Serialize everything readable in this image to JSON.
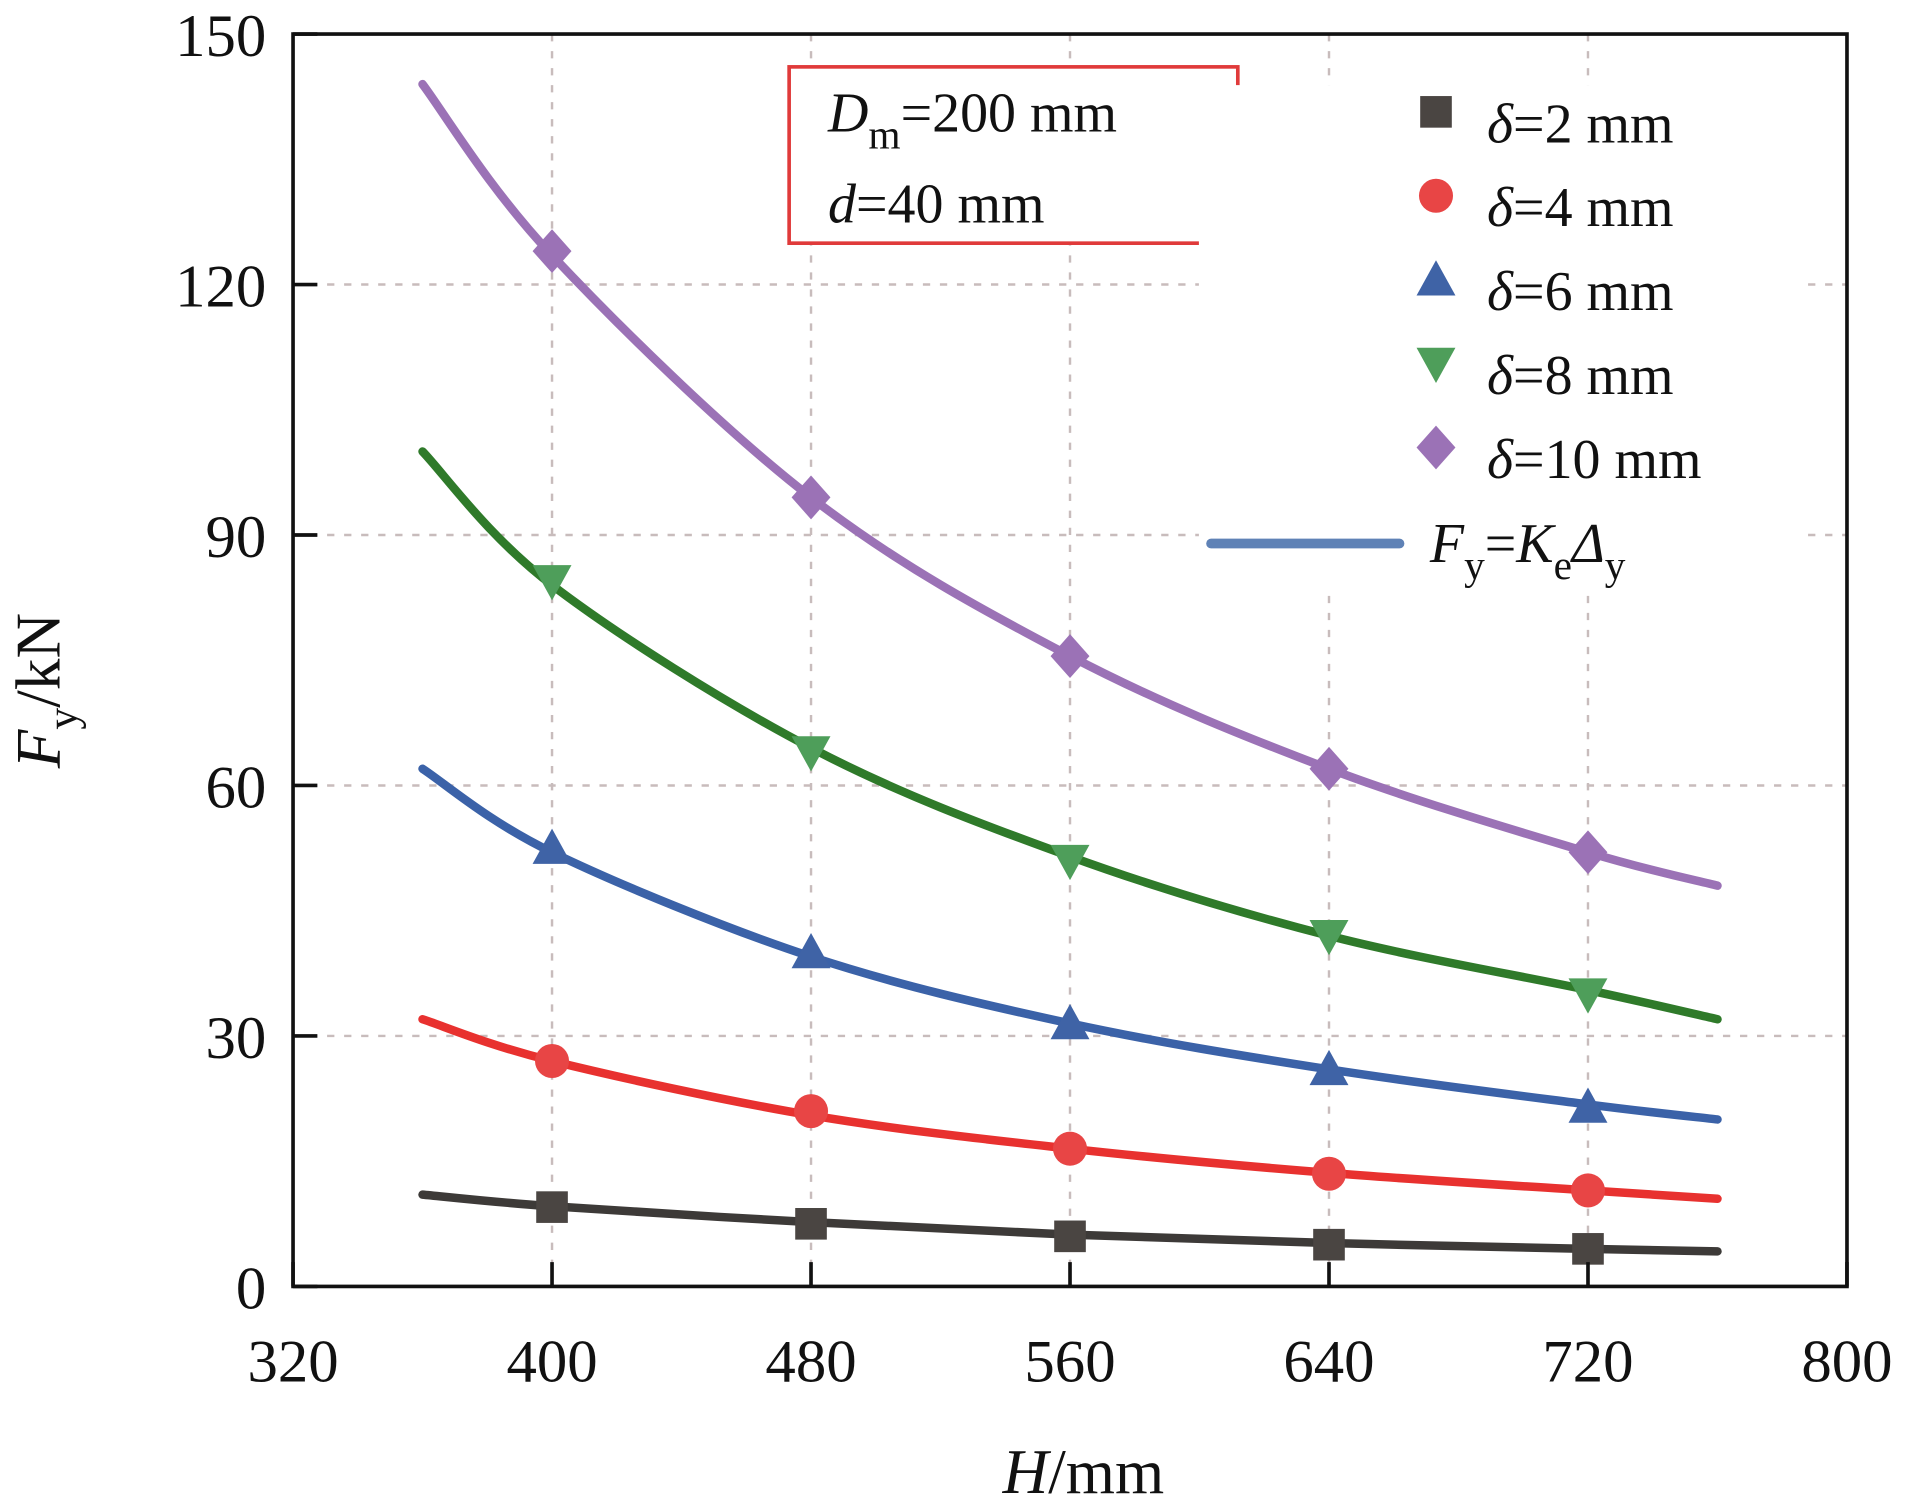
{
  "chart_data": {
    "type": "line",
    "title": "",
    "xlabel": {
      "var": "H",
      "unit": "/mm"
    },
    "ylabel": {
      "var": "F",
      "sub": "y",
      "unit": "/kN"
    },
    "xlim": [
      320,
      800
    ],
    "ylim": [
      0,
      150
    ],
    "xticks": [
      320,
      400,
      480,
      560,
      640,
      720,
      800
    ],
    "yticks": [
      0,
      30,
      60,
      90,
      120,
      150
    ],
    "grid": true,
    "legend_placement": "top-right",
    "annotation": {
      "line1": {
        "var": "D",
        "sub": "m",
        "rest": "=200 mm"
      },
      "line2": {
        "var": "d",
        "rest": "=40 mm"
      },
      "border_color": "#e03a3a"
    },
    "marker_x": [
      400,
      480,
      560,
      640,
      720
    ],
    "series": [
      {
        "name": "δ=2 mm",
        "delta": "δ",
        "rest": "=2 mm",
        "marker": "square",
        "color": "#3d3a38",
        "values": [
          9.5,
          7.5,
          6,
          5,
          4.5
        ],
        "fit_x": [
          360,
          400,
          480,
          560,
          640,
          720,
          760
        ],
        "fit_y": [
          11,
          9.6,
          7.7,
          6.2,
          5.2,
          4.5,
          4.2
        ]
      },
      {
        "name": "δ=4 mm",
        "delta": "δ",
        "rest": "=4 mm",
        "marker": "circle",
        "color": "#e8312f",
        "values": [
          27,
          21,
          16.5,
          13.5,
          11.5
        ],
        "fit_x": [
          360,
          400,
          480,
          560,
          640,
          720,
          760
        ],
        "fit_y": [
          32,
          27,
          20.5,
          16.5,
          13.6,
          11.5,
          10.5
        ]
      },
      {
        "name": "δ=6 mm",
        "delta": "δ",
        "rest": "=6 mm",
        "marker": "triangle-up",
        "color": "#3b62a8",
        "values": [
          52.5,
          40,
          31.5,
          26,
          21.5
        ],
        "fit_x": [
          360,
          400,
          480,
          560,
          640,
          720,
          760
        ],
        "fit_y": [
          62,
          52,
          39.5,
          31.5,
          26,
          21.8,
          20
        ]
      },
      {
        "name": "δ=8 mm",
        "delta": "δ",
        "rest": "=8 mm",
        "marker": "triangle-down",
        "color": "#2f7a2a",
        "values": [
          84.5,
          64,
          51,
          42,
          35
        ],
        "fit_x": [
          360,
          400,
          480,
          560,
          640,
          720,
          760
        ],
        "fit_y": [
          100,
          84,
          64.5,
          51.5,
          42,
          35.5,
          32
        ]
      },
      {
        "name": "δ=10 mm",
        "delta": "δ",
        "rest": "=10 mm",
        "marker": "diamond",
        "color": "#9b72b6",
        "values": [
          124,
          94.5,
          75.5,
          62,
          52
        ],
        "fit_x": [
          360,
          400,
          480,
          560,
          640,
          720,
          760
        ],
        "fit_y": [
          144,
          123.5,
          94.5,
          75.5,
          62,
          52,
          48
        ]
      }
    ],
    "fit_legend": {
      "color": "#5f82b6",
      "F": "F",
      "Fsub": "y",
      "eq": "=",
      "K": "K",
      "Ksub": "e",
      "D": "Δ",
      "Dsub": "y"
    }
  }
}
